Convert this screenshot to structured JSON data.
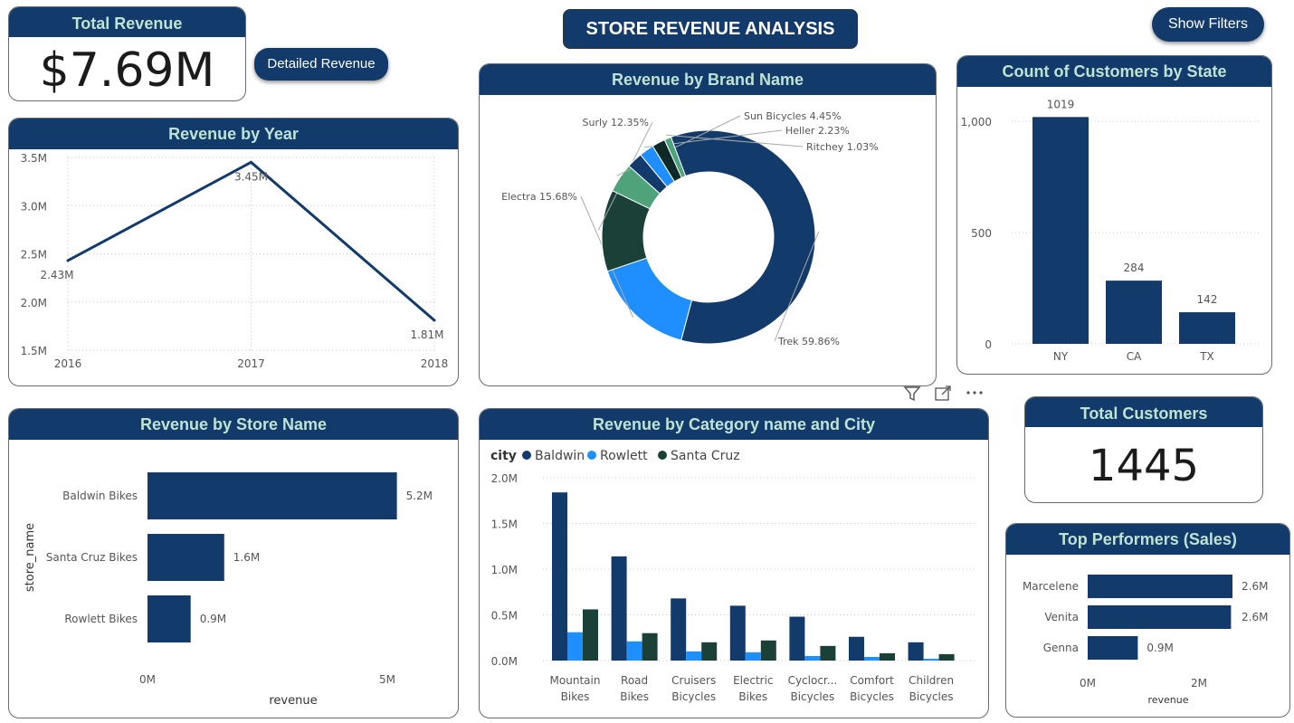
{
  "page": {
    "title": "STORE REVENUE ANALYSIS",
    "show_filters_label": "Show Filters",
    "detailed_revenue_label": "Detailed Revenue"
  },
  "kpis": {
    "total_revenue": {
      "title": "Total Revenue",
      "value": "$7.69M"
    },
    "total_customers": {
      "title": "Total Customers",
      "value": "1445"
    }
  },
  "visual_header_icons": [
    "filter-icon",
    "focus-mode-icon",
    "more-options-icon"
  ],
  "colors": {
    "navy": "#123a6b",
    "header_text": "#bfe3d3",
    "baldwin": "#123a6b",
    "rowlett": "#1f8fff",
    "santa_cruz": "#1a4038",
    "donut": [
      "#123a6b",
      "#1f8fff",
      "#1a4038",
      "#4ea37a",
      "#123a6b",
      "#1f8fff",
      "#0d2a26",
      "#4ea37a"
    ]
  },
  "chart_data": [
    {
      "id": "revenue-by-year",
      "type": "line",
      "title": "Revenue by Year",
      "x": [
        "2016",
        "2017",
        "2018"
      ],
      "values": [
        2.43,
        3.45,
        1.81
      ],
      "data_labels": [
        "2.43M",
        "3.45M",
        "1.81M"
      ],
      "yticks": [
        "1.5M",
        "2.0M",
        "2.5M",
        "3.0M",
        "3.5M"
      ],
      "ylim": [
        1.5,
        3.5
      ],
      "grid": true
    },
    {
      "id": "revenue-by-brand",
      "type": "pie",
      "title": "Revenue by Brand Name",
      "slices": [
        {
          "label": "Trek 59.86%",
          "value": 59.86
        },
        {
          "label": "Electra 15.68%",
          "value": 15.68
        },
        {
          "label": "Surly 12.35%",
          "value": 12.35
        },
        {
          "label": "Sun Bicycles 4.45%",
          "value": 4.45
        },
        {
          "label": "",
          "value": 2.4
        },
        {
          "label": "Heller 2.23%",
          "value": 2.23
        },
        {
          "label": "",
          "value": 2.0
        },
        {
          "label": "Ritchey 1.03%",
          "value": 1.03
        }
      ]
    },
    {
      "id": "customers-by-state",
      "type": "bar",
      "title": "Count of Customers by State",
      "categories": [
        "NY",
        "CA",
        "TX"
      ],
      "values": [
        1019,
        284,
        142
      ],
      "data_labels": [
        "1019",
        "284",
        "142"
      ],
      "yticks": [
        "0",
        "500",
        "1,000"
      ],
      "ylim": [
        0,
        1000
      ],
      "grid": true
    },
    {
      "id": "revenue-by-store",
      "type": "bar",
      "orientation": "horizontal",
      "title": "Revenue by Store Name",
      "categories": [
        "Baldwin Bikes",
        "Santa Cruz Bikes",
        "Rowlett Bikes"
      ],
      "values": [
        5.2,
        1.6,
        0.9
      ],
      "data_labels": [
        "5.2M",
        "1.6M",
        "0.9M"
      ],
      "xticks": [
        "0M",
        "5M"
      ],
      "xlim": [
        0,
        5
      ],
      "xlabel": "revenue",
      "ylabel": "store_name"
    },
    {
      "id": "revenue-by-category-city",
      "type": "bar",
      "title": "Revenue by Category name and City",
      "legend_title": "city",
      "categories": [
        [
          "Mountain",
          "Bikes"
        ],
        [
          "Road",
          "Bikes"
        ],
        [
          "Cruisers",
          "Bicycles"
        ],
        [
          "Electric",
          "Bikes"
        ],
        [
          "Cyclocr...",
          "Bicycles"
        ],
        [
          "Comfort",
          "Bicycles"
        ],
        [
          "Children",
          "Bicycles"
        ]
      ],
      "series": [
        {
          "name": "Baldwin",
          "values": [
            1.84,
            1.14,
            0.68,
            0.6,
            0.48,
            0.26,
            0.2
          ]
        },
        {
          "name": "Rowlett",
          "values": [
            0.31,
            0.21,
            0.1,
            0.09,
            0.05,
            0.04,
            0.02
          ]
        },
        {
          "name": "Santa Cruz",
          "values": [
            0.56,
            0.3,
            0.2,
            0.22,
            0.16,
            0.08,
            0.07
          ]
        }
      ],
      "yticks": [
        "0.0M",
        "0.5M",
        "1.0M",
        "1.5M",
        "2.0M"
      ],
      "ylim": [
        0,
        2.0
      ],
      "grid": true,
      "legend_position": "top-left"
    },
    {
      "id": "top-performers",
      "type": "bar",
      "orientation": "horizontal",
      "title": "Top Performers (Sales)",
      "categories": [
        "Marcelene",
        "Venita",
        "Genna"
      ],
      "values": [
        2.6,
        2.6,
        0.9
      ],
      "data_labels": [
        "2.6M",
        "2.6M",
        "0.9M"
      ],
      "xticks": [
        "0M",
        "2M"
      ],
      "xlim": [
        0,
        2
      ],
      "xlabel": "revenue"
    }
  ]
}
